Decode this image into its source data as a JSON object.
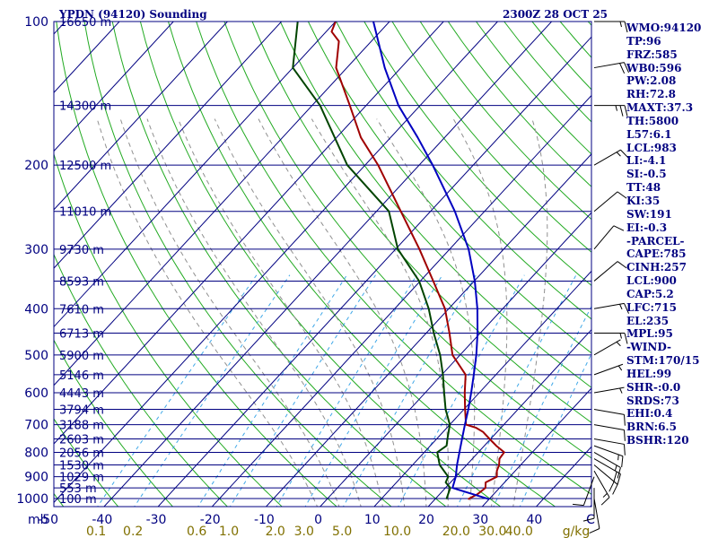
{
  "header": {
    "station": "YPDN (94120) Sounding",
    "time": "2300Z 28 OCT 25"
  },
  "indices": [
    "WMO:94120",
    "TP:96",
    "FRZ:585",
    "WB0:596",
    "PW:2.08",
    "RH:72.8",
    "MAXT:37.3",
    "TH:5800",
    "L57:6.1",
    "LCL:983",
    "LI:-4.1",
    "SI:-0.5",
    "TT:48",
    "KI:35",
    "SW:191",
    "EI:-0.3",
    "-PARCEL-",
    "CAPE:785",
    "CINH:257",
    "LCL:900",
    "CAP:5.2",
    "LFC:715",
    "EL:235",
    "MPL:95",
    "-WIND-",
    "STM:170/15",
    "HEL:99",
    "SHR-:0.0",
    "SRDS:73",
    "EHI:0.4",
    "BRN:6.5",
    "BSHR:120"
  ],
  "colors": {
    "frame": "#000080",
    "isobar": "#000080",
    "isotherm": "#000080",
    "dry_adiabat": "#22aa22",
    "moist_adiabat": "#909090",
    "mixing_ratio": "#40a8e8",
    "temperature": "#a00000",
    "dewpoint": "#004400",
    "parcel": "#0000c0",
    "axis_text": "#000080",
    "mixing_text": "#807000",
    "wind_barb": "#000000"
  },
  "chart_data": {
    "type": "skew-t",
    "title": "YPDN (94120) Sounding",
    "pressure_axis_unit": "mb",
    "pressure_ticks": [
      100,
      200,
      300,
      400,
      500,
      600,
      700,
      800,
      900,
      1000
    ],
    "temperature_ticks": [
      -50,
      -40,
      -30,
      -20,
      -10,
      0,
      10,
      20,
      30,
      40
    ],
    "temperature_tick_labels": [
      "-50",
      "-40",
      "-30",
      "-20",
      "-10",
      "0",
      "10",
      "20",
      "30",
      "40"
    ],
    "temperature_unit": "C",
    "mixing_ratio_lines": [
      0.1,
      0.2,
      0.6,
      1.0,
      2.0,
      3.0,
      5.0,
      10.0,
      20.0,
      30.0,
      40.0
    ],
    "mixing_ratio_labels": [
      "0.1",
      "0.2",
      "0.6",
      "1.0",
      "2.0",
      "3.0",
      "5.0",
      "10.0",
      "20.0",
      "30.0",
      "40.0"
    ],
    "mixing_ratio_unit": "g/kg",
    "height_levels": [
      {
        "p": 100,
        "label": "16650 m"
      },
      {
        "p": 150,
        "label": "14300 m"
      },
      {
        "p": 200,
        "label": "12500 m"
      },
      {
        "p": 250,
        "label": "11010 m"
      },
      {
        "p": 300,
        "label": "9730 m"
      },
      {
        "p": 350,
        "label": "8593 m"
      },
      {
        "p": 400,
        "label": "7610 m"
      },
      {
        "p": 450,
        "label": "6713 m"
      },
      {
        "p": 500,
        "label": "5900 m"
      },
      {
        "p": 550,
        "label": "5146 m"
      },
      {
        "p": 600,
        "label": "4443 m"
      },
      {
        "p": 650,
        "label": "3794 m"
      },
      {
        "p": 700,
        "label": "3188 m"
      },
      {
        "p": 750,
        "label": "2603 m"
      },
      {
        "p": 800,
        "label": "2056 m"
      },
      {
        "p": 850,
        "label": "1530 m"
      },
      {
        "p": 900,
        "label": "1029 m"
      },
      {
        "p": 950,
        "label": "553 m"
      },
      {
        "p": 1000,
        "label": "100 m"
      }
    ],
    "series": [
      {
        "name": "Temperature",
        "points": [
          [
            1003,
            26.1
          ],
          [
            980,
            27
          ],
          [
            950,
            27.4
          ],
          [
            925,
            26.5
          ],
          [
            900,
            27.6
          ],
          [
            875,
            26.6
          ],
          [
            850,
            26
          ],
          [
            825,
            25
          ],
          [
            800,
            24.8
          ],
          [
            775,
            22.2
          ],
          [
            750,
            19.8
          ],
          [
            725,
            17.4
          ],
          [
            710,
            15.3
          ],
          [
            700,
            13
          ],
          [
            650,
            10.2
          ],
          [
            600,
            7.3
          ],
          [
            550,
            4.4
          ],
          [
            500,
            -1.4
          ],
          [
            450,
            -5.7
          ],
          [
            400,
            -10.7
          ],
          [
            350,
            -17.6
          ],
          [
            300,
            -25.6
          ],
          [
            250,
            -35.5
          ],
          [
            200,
            -47.6
          ],
          [
            175,
            -55.5
          ],
          [
            150,
            -63
          ],
          [
            125,
            -72
          ],
          [
            110,
            -76
          ],
          [
            105,
            -79
          ],
          [
            100,
            -80
          ]
        ]
      },
      {
        "name": "Dewpoint",
        "points": [
          [
            1003,
            22.1
          ],
          [
            950,
            20.9
          ],
          [
            925,
            19.1
          ],
          [
            900,
            18.6
          ],
          [
            850,
            15
          ],
          [
            800,
            12.4
          ],
          [
            775,
            13
          ],
          [
            750,
            12
          ],
          [
            700,
            10
          ],
          [
            650,
            6.6
          ],
          [
            600,
            3.5
          ],
          [
            550,
            0.2
          ],
          [
            500,
            -3.7
          ],
          [
            450,
            -8.6
          ],
          [
            400,
            -13.7
          ],
          [
            350,
            -20.2
          ],
          [
            300,
            -29.6
          ],
          [
            250,
            -37.7
          ],
          [
            200,
            -53.3
          ],
          [
            150,
            -68.5
          ],
          [
            125,
            -80
          ],
          [
            100,
            -87
          ]
        ]
      },
      {
        "name": "Parcel",
        "points": [
          [
            1003,
            30
          ],
          [
            950,
            21.3
          ],
          [
            900,
            20
          ],
          [
            850,
            18.2
          ],
          [
            800,
            16.5
          ],
          [
            750,
            14.7
          ],
          [
            700,
            12.8
          ],
          [
            650,
            10.8
          ],
          [
            600,
            8.5
          ],
          [
            550,
            5.9
          ],
          [
            500,
            3
          ],
          [
            450,
            -0.5
          ],
          [
            400,
            -4.7
          ],
          [
            350,
            -9.9
          ],
          [
            300,
            -16.5
          ],
          [
            250,
            -25.5
          ],
          [
            200,
            -37.5
          ],
          [
            175,
            -45
          ],
          [
            150,
            -54
          ],
          [
            125,
            -63
          ],
          [
            100,
            -73
          ]
        ]
      }
    ],
    "wind_barbs": [
      {
        "p": 1000,
        "dir": 170,
        "spd": 10
      },
      {
        "p": 950,
        "dir": 180,
        "spd": 10
      },
      {
        "p": 900,
        "dir": 200,
        "spd": 10
      },
      {
        "p": 875,
        "dir": 150,
        "spd": 15
      },
      {
        "p": 850,
        "dir": 130,
        "spd": 20
      },
      {
        "p": 825,
        "dir": 120,
        "spd": 20
      },
      {
        "p": 800,
        "dir": 120,
        "spd": 15
      },
      {
        "p": 775,
        "dir": 110,
        "spd": 15
      },
      {
        "p": 750,
        "dir": 100,
        "spd": 10
      },
      {
        "p": 700,
        "dir": 100,
        "spd": 10
      },
      {
        "p": 650,
        "dir": 100,
        "spd": 10
      },
      {
        "p": 600,
        "dir": 80,
        "spd": 5
      },
      {
        "p": 550,
        "dir": 70,
        "spd": 5
      },
      {
        "p": 500,
        "dir": 60,
        "spd": 5
      },
      {
        "p": 450,
        "dir": 90,
        "spd": 15
      },
      {
        "p": 400,
        "dir": 80,
        "spd": 15
      },
      {
        "p": 350,
        "dir": 50,
        "spd": 10
      },
      {
        "p": 300,
        "dir": 40,
        "spd": 10
      },
      {
        "p": 250,
        "dir": 50,
        "spd": 10
      },
      {
        "p": 200,
        "dir": 60,
        "spd": 15
      },
      {
        "p": 150,
        "dir": 90,
        "spd": 25
      },
      {
        "p": 125,
        "dir": 80,
        "spd": 20
      },
      {
        "p": 100,
        "dir": 90,
        "spd": 15
      }
    ]
  }
}
